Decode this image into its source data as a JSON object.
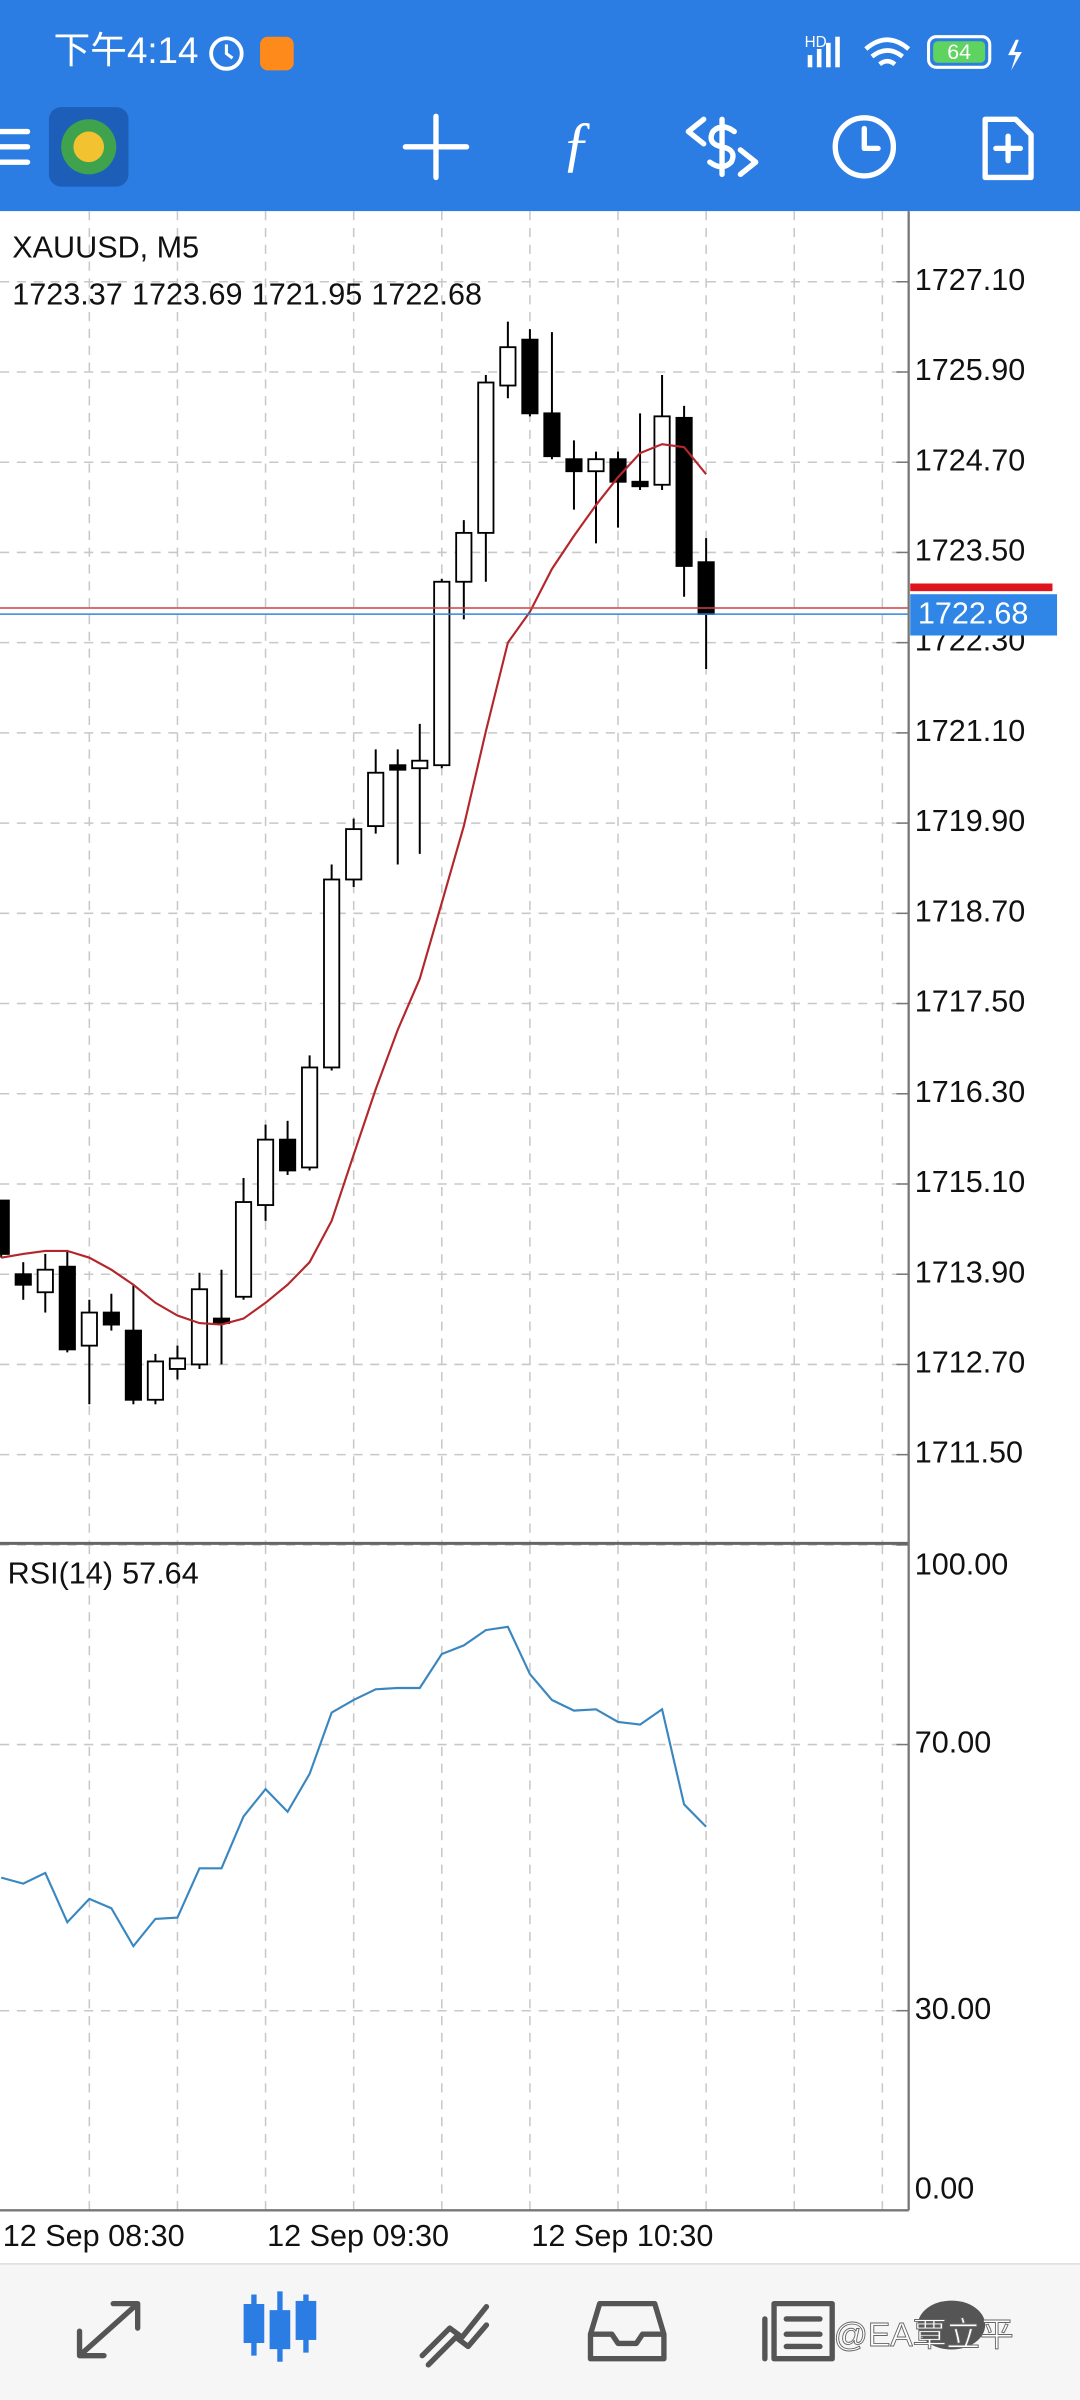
{
  "status_bar": {
    "time": "下午4:14",
    "network": "HD",
    "battery": "64"
  },
  "chart_data": [
    {
      "type": "candlestick",
      "title": "XAUUSD, M5",
      "categories": [
        "12 Sep 08:30",
        null,
        null,
        null,
        null,
        null,
        null,
        null,
        null,
        null,
        null,
        null,
        "12 Sep 09:30",
        null,
        null,
        null,
        null,
        null,
        null,
        null,
        null,
        null,
        null,
        null,
        "12 Sep 10:30",
        null,
        null,
        null,
        null,
        null,
        null,
        null,
        null
      ],
      "open": [
        1714.88,
        1713.9,
        1713.66,
        1714.0,
        1712.95,
        1713.39,
        1713.15,
        1712.23,
        1712.64,
        1712.7,
        1713.31,
        1713.6,
        1714.82,
        1715.69,
        1715.32,
        1716.65,
        1719.15,
        1719.86,
        1720.67,
        1720.63,
        1720.67,
        1723.11,
        1723.76,
        1725.72,
        1726.33,
        1725.35,
        1724.74,
        1724.58,
        1724.74,
        1724.44,
        1724.4,
        1725.29,
        1723.37
      ],
      "high": [
        1714.88,
        1714.06,
        1714.17,
        1714.21,
        1713.56,
        1713.64,
        1713.76,
        1712.84,
        1712.95,
        1713.92,
        1713.96,
        1715.18,
        1715.89,
        1715.94,
        1716.81,
        1719.35,
        1719.96,
        1720.88,
        1720.88,
        1721.22,
        1723.15,
        1723.93,
        1725.86,
        1726.57,
        1726.47,
        1726.43,
        1724.99,
        1724.84,
        1724.84,
        1725.35,
        1725.86,
        1725.45,
        1723.69
      ],
      "low": [
        1714.12,
        1713.56,
        1713.39,
        1712.86,
        1712.17,
        1713.15,
        1712.17,
        1712.17,
        1712.5,
        1712.64,
        1712.7,
        1713.56,
        1714.61,
        1715.22,
        1715.28,
        1716.61,
        1719.05,
        1719.76,
        1719.35,
        1719.49,
        1720.63,
        1722.61,
        1723.11,
        1725.55,
        1725.31,
        1724.74,
        1724.07,
        1723.62,
        1723.83,
        1724.33,
        1724.33,
        1722.91,
        1721.95
      ],
      "close": [
        1714.17,
        1713.76,
        1713.96,
        1712.9,
        1713.39,
        1713.23,
        1712.23,
        1712.74,
        1712.78,
        1713.7,
        1713.25,
        1714.86,
        1715.69,
        1715.28,
        1716.65,
        1719.15,
        1719.82,
        1720.57,
        1720.61,
        1720.73,
        1723.11,
        1723.76,
        1725.76,
        1726.23,
        1725.35,
        1724.78,
        1724.58,
        1724.74,
        1724.44,
        1724.38,
        1725.31,
        1723.32,
        1722.68
      ],
      "moving_average": {
        "color": "#b3262b",
        "values": [
          1714.12,
          1714.17,
          1714.21,
          1714.21,
          1714.12,
          1713.96,
          1713.76,
          1713.52,
          1713.35,
          1713.25,
          1713.23,
          1713.31,
          1713.52,
          1713.76,
          1714.06,
          1714.61,
          1715.49,
          1716.36,
          1717.15,
          1717.83,
          1718.84,
          1719.86,
          1721.12,
          1722.3,
          1722.71,
          1723.28,
          1723.72,
          1724.13,
          1724.5,
          1724.82,
          1724.94,
          1724.9,
          1724.54
        ]
      },
      "up_color": "#ffffff",
      "down_color": "#000000",
      "price_line_color": "#2f86e6",
      "ylim": [
        1710.34,
        1728.04
      ],
      "yticks": [
        {
          "value": 1727.1,
          "label": "1727.10"
        },
        {
          "value": 1725.9,
          "label": "1725.90"
        },
        {
          "value": 1724.7,
          "label": "1724.70"
        },
        {
          "value": 1723.5,
          "label": "1723.50"
        },
        {
          "value": 1722.3,
          "label": "1722.30"
        },
        {
          "value": 1721.1,
          "label": "1721.10"
        },
        {
          "value": 1719.9,
          "label": "1719.90"
        },
        {
          "value": 1718.7,
          "label": "1718.70"
        },
        {
          "value": 1717.5,
          "label": "1717.50"
        },
        {
          "value": 1716.3,
          "label": "1716.30"
        },
        {
          "value": 1715.1,
          "label": "1715.10"
        },
        {
          "value": 1713.9,
          "label": "1713.90"
        },
        {
          "value": 1712.7,
          "label": "1712.70"
        },
        {
          "value": 1711.5,
          "label": "1711.50"
        }
      ],
      "grid": true
    },
    {
      "type": "line",
      "title": "RSI(14)",
      "color": "#3a87c0",
      "values": [
        50.0,
        49.1,
        50.7,
        43.3,
        46.8,
        45.4,
        39.7,
        43.8,
        44.0,
        51.4,
        51.4,
        59.2,
        63.3,
        59.9,
        65.6,
        74.8,
        76.7,
        78.3,
        78.5,
        78.5,
        83.6,
        84.9,
        87.2,
        87.7,
        80.6,
        76.7,
        75.1,
        75.3,
        73.4,
        73.0,
        75.3,
        61.0,
        57.64
      ],
      "ylim": [
        0,
        100
      ],
      "yticks": [
        {
          "value": 100,
          "label": "100.00"
        },
        {
          "value": 70,
          "label": "70.00"
        },
        {
          "value": 30,
          "label": "30.00"
        },
        {
          "value": 0,
          "label": "0.00"
        }
      ],
      "grid": true
    }
  ],
  "watermark": "@EA覃立平"
}
